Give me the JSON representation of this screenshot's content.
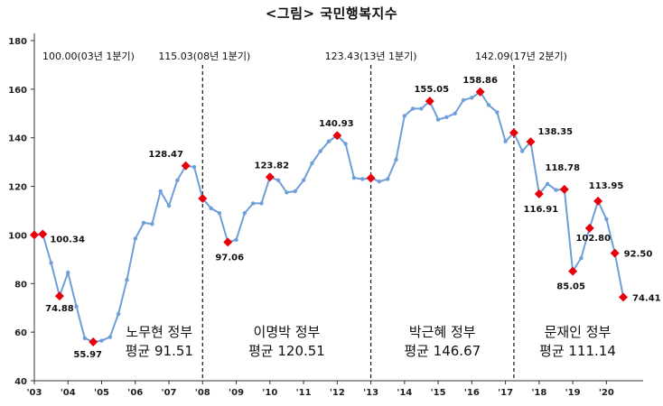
{
  "title": "<그림>  국민행복지수",
  "chart_data": {
    "type": "line",
    "ylim": [
      40,
      180
    ],
    "yticks": [
      40,
      60,
      80,
      100,
      120,
      140,
      160,
      180
    ],
    "xticks": [
      "'03",
      "'04",
      "'05",
      "'06",
      "'07",
      "'08",
      "'09",
      "'10",
      "'11",
      "'12",
      "'13",
      "'14",
      "'15",
      "'16",
      "'17",
      "'18",
      "'19",
      "'20"
    ],
    "grid": false,
    "line_color": "#6f9fd8",
    "marker_color": "#e8000b",
    "series": [
      {
        "values": [
          100.0,
          100.34,
          88.5,
          74.88,
          84.5,
          70.5,
          57.5,
          55.97,
          56.5,
          58.0,
          67.5,
          81.5,
          98.5,
          105.0,
          104.5,
          118.0,
          112.0,
          122.5,
          128.47,
          128.0,
          115.03,
          111.0,
          109.0,
          97.06,
          98.0,
          109.0,
          113.0,
          113.0,
          123.82,
          122.5,
          117.5,
          118.0,
          122.5,
          129.5,
          134.5,
          138.5,
          140.93,
          137.5,
          123.5,
          123.0,
          123.43,
          122.0,
          123.0,
          131.0,
          149.0,
          152.0,
          152.0,
          155.05,
          147.5,
          148.5,
          150.0,
          155.5,
          156.5,
          158.86,
          153.5,
          150.5,
          138.5,
          142.09,
          134.5,
          138.35,
          116.91,
          121.0,
          118.5,
          118.78,
          85.05,
          90.5,
          102.8,
          113.95,
          106.5,
          92.5,
          74.41
        ],
        "highlighted": [
          {
            "index": 0,
            "value": 100.0
          },
          {
            "index": 1,
            "value": 100.34
          },
          {
            "index": 3,
            "value": 74.88
          },
          {
            "index": 7,
            "value": 55.97
          },
          {
            "index": 18,
            "value": 128.47
          },
          {
            "index": 20,
            "value": 115.03
          },
          {
            "index": 23,
            "value": 97.06
          },
          {
            "index": 28,
            "value": 123.82
          },
          {
            "index": 36,
            "value": 140.93
          },
          {
            "index": 40,
            "value": 123.43
          },
          {
            "index": 47,
            "value": 155.05
          },
          {
            "index": 53,
            "value": 158.86
          },
          {
            "index": 57,
            "value": 142.09
          },
          {
            "index": 59,
            "value": 138.35
          },
          {
            "index": 60,
            "value": 116.91
          },
          {
            "index": 63,
            "value": 118.78
          },
          {
            "index": 64,
            "value": 85.05
          },
          {
            "index": 66,
            "value": 102.8
          },
          {
            "index": 67,
            "value": 113.95
          },
          {
            "index": 69,
            "value": 92.5
          },
          {
            "index": 70,
            "value": 74.41
          }
        ]
      }
    ],
    "data_labels": [
      {
        "text": "100.34",
        "index": 1
      },
      {
        "text": "74.88",
        "index": 3
      },
      {
        "text": "55.97",
        "index": 7
      },
      {
        "text": "128.47",
        "index": 18
      },
      {
        "text": "97.06",
        "index": 23
      },
      {
        "text": "123.82",
        "index": 28
      },
      {
        "text": "140.93",
        "index": 36
      },
      {
        "text": "155.05",
        "index": 47
      },
      {
        "text": "158.86",
        "index": 53
      },
      {
        "text": "138.35",
        "index": 59
      },
      {
        "text": "116.91",
        "index": 60
      },
      {
        "text": "118.78",
        "index": 63
      },
      {
        "text": "85.05",
        "index": 64
      },
      {
        "text": "102.80",
        "index": 66
      },
      {
        "text": "113.95",
        "index": 67
      },
      {
        "text": "92.50",
        "index": 69
      },
      {
        "text": "74.41",
        "index": 70
      }
    ],
    "top_annotations": [
      "100.00(03년 1분기)",
      "115.03(08년 1분기)",
      "123.43(13년 1분기)",
      "142.09(17년 2분기)"
    ],
    "dividers_at_index": [
      20,
      40,
      57
    ],
    "eras": [
      {
        "name": "노무현 정부",
        "average": "평균 91.51"
      },
      {
        "name": "이명박 정부",
        "average": "평균 120.51"
      },
      {
        "name": "박근혜 정부",
        "average": "평균 146.67"
      },
      {
        "name": "문재인 정부",
        "average": "평균 111.14"
      }
    ]
  }
}
